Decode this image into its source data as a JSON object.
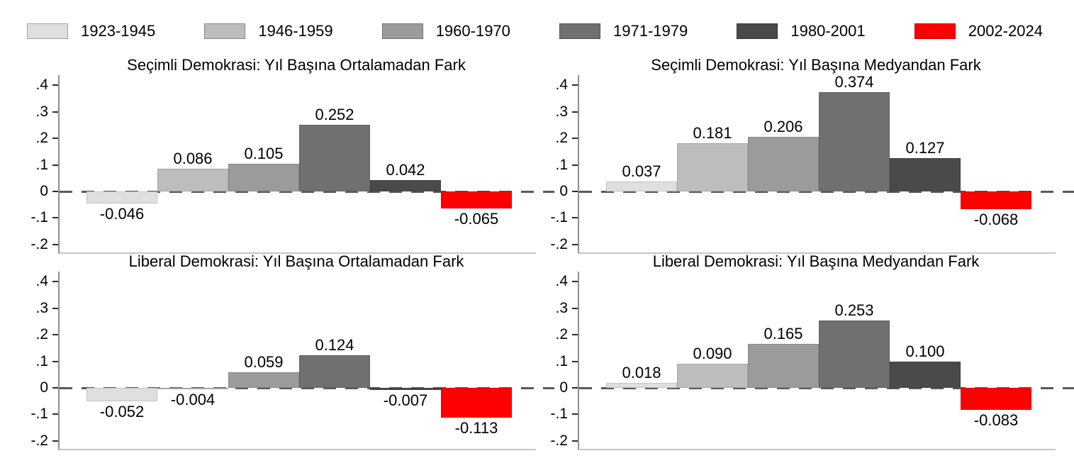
{
  "legend": {
    "entries": [
      {
        "label": "1923-1945",
        "color": "#dfdfdf",
        "dotted": true
      },
      {
        "label": "1946-1959",
        "color": "#bdbdbd",
        "dotted": false
      },
      {
        "label": "1960-1970",
        "color": "#9b9b9b",
        "dotted": false
      },
      {
        "label": "1971-1979",
        "color": "#707070",
        "dotted": false
      },
      {
        "label": "1980-2001",
        "color": "#4a4a4a",
        "dotted": false
      },
      {
        "label": "2002-2024",
        "color": "#ff0000",
        "dotted": false
      }
    ]
  },
  "axis": {
    "yticks": [
      {
        "value": 0.4,
        "label": ".4"
      },
      {
        "value": 0.3,
        "label": ".3"
      },
      {
        "value": 0.2,
        "label": ".2"
      },
      {
        "value": 0.1,
        "label": ".1"
      },
      {
        "value": 0,
        "label": "0"
      },
      {
        "value": -0.1,
        "label": "-.1"
      },
      {
        "value": -0.2,
        "label": "-.2"
      }
    ],
    "ylim": [
      -0.23,
      0.44
    ],
    "grid": false,
    "zero_line_style": "dashed",
    "legend_position": "top"
  },
  "chart_data": [
    {
      "type": "bar",
      "title": "Seçimli Demokrasi: Yıl Başına Ortalamadan Fark",
      "categories": [
        "1923-1945",
        "1946-1959",
        "1960-1970",
        "1971-1979",
        "1980-2001",
        "2002-2024"
      ],
      "values": [
        -0.046,
        0.086,
        0.105,
        0.252,
        0.042,
        -0.065
      ],
      "value_labels": [
        "-0.046",
        "0.086",
        "0.105",
        "0.252",
        "0.042",
        "-0.065"
      ],
      "ylim": [
        -0.23,
        0.44
      ],
      "yticks": [
        ".4",
        ".3",
        ".2",
        ".1",
        "0",
        "-.1",
        "-.2"
      ]
    },
    {
      "type": "bar",
      "title": "Seçimli Demokrasi: Yıl Başına Medyandan Fark",
      "categories": [
        "1923-1945",
        "1946-1959",
        "1960-1970",
        "1971-1979",
        "1980-2001",
        "2002-2024"
      ],
      "values": [
        0.037,
        0.181,
        0.206,
        0.374,
        0.127,
        -0.068
      ],
      "value_labels": [
        "0.037",
        "0.181",
        "0.206",
        "0.374",
        "0.127",
        "-0.068"
      ],
      "ylim": [
        -0.23,
        0.44
      ],
      "yticks": [
        ".4",
        ".3",
        ".2",
        ".1",
        "0",
        "-.1",
        "-.2"
      ]
    },
    {
      "type": "bar",
      "title": "Liberal Demokrasi: Yıl Başına Ortalamadan Fark",
      "categories": [
        "1923-1945",
        "1946-1959",
        "1960-1970",
        "1971-1979",
        "1980-2001",
        "2002-2024"
      ],
      "values": [
        -0.052,
        -0.004,
        0.059,
        0.124,
        -0.007,
        -0.113
      ],
      "value_labels": [
        "-0.052",
        "-0.004",
        "0.059",
        "0.124",
        "-0.007",
        "-0.113"
      ],
      "ylim": [
        -0.23,
        0.44
      ],
      "yticks": [
        ".4",
        ".3",
        ".2",
        ".1",
        "0",
        "-.1",
        "-.2"
      ]
    },
    {
      "type": "bar",
      "title": "Liberal Demokrasi: Yıl Başına Medyandan Fark",
      "categories": [
        "1923-1945",
        "1946-1959",
        "1960-1970",
        "1971-1979",
        "1980-2001",
        "2002-2024"
      ],
      "values": [
        0.018,
        0.09,
        0.165,
        0.253,
        0.1,
        -0.083
      ],
      "value_labels": [
        "0.018",
        "0.090",
        "0.165",
        "0.253",
        "0.100",
        "-0.083"
      ],
      "ylim": [
        -0.23,
        0.44
      ],
      "yticks": [
        ".4",
        ".3",
        ".2",
        ".1",
        "0",
        "-.1",
        "-.2"
      ]
    }
  ]
}
